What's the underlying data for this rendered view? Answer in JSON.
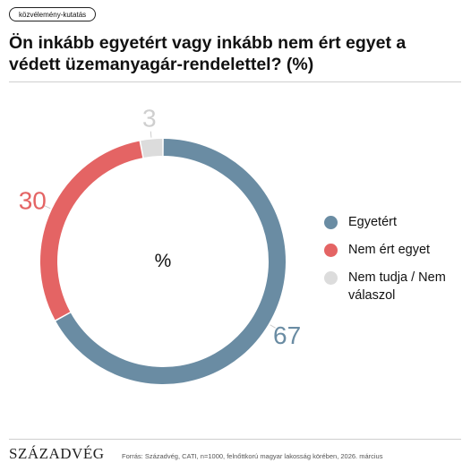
{
  "header": {
    "tag": "közvélemény-kutatás",
    "title": "Ön inkább egyetért vagy inkább nem ért egyet a védett üzemanyagár-rendelettel? (%)"
  },
  "footer": {
    "brand": "SZÁZADVÉG",
    "source": "Forrás: Századvég, CATI, n=1000, felnőttkorú magyar lakosság körében, 2026. március"
  },
  "chart_data": {
    "type": "pie",
    "center_label": "%",
    "legend_position": "right",
    "slices": [
      {
        "label": "Egyetért",
        "value": 67,
        "color": "#6a8ca3"
      },
      {
        "label": "Nem ért egyet",
        "value": 30,
        "color": "#e46464"
      },
      {
        "label": "Nem tudja / Nem válaszol",
        "value": 3,
        "color": "#dcdcdc"
      }
    ]
  }
}
